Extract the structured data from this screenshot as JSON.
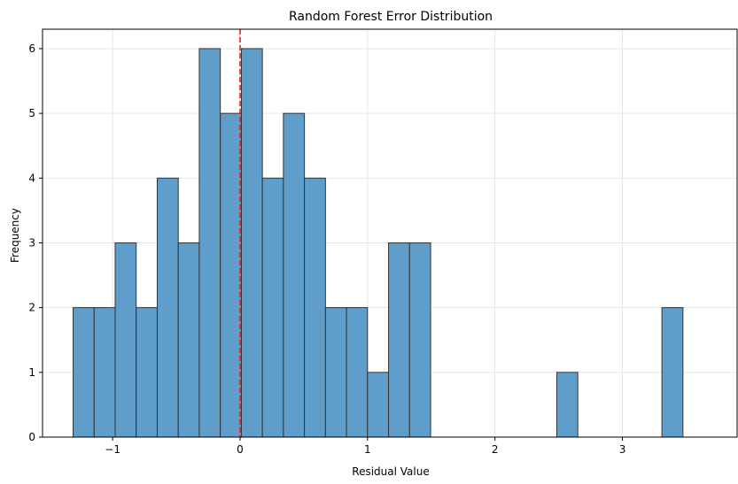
{
  "chart_data": {
    "type": "bar",
    "title": "Random Forest Error Distribution",
    "xlabel": "Residual Value",
    "ylabel": "Frequency",
    "xlim": [
      -1.55,
      3.9
    ],
    "ylim": [
      0,
      6.3
    ],
    "bin_start": -1.31,
    "bin_width": 0.165,
    "bin_counts": [
      2,
      2,
      3,
      2,
      4,
      3,
      6,
      5,
      6,
      4,
      5,
      4,
      2,
      2,
      1,
      3,
      3,
      0,
      0,
      0,
      0,
      0,
      0,
      1,
      0,
      0,
      0,
      0,
      2
    ],
    "x_ticks": [
      {
        "value": -1,
        "label": "−1"
      },
      {
        "value": 0,
        "label": "0"
      },
      {
        "value": 1,
        "label": "1"
      },
      {
        "value": 2,
        "label": "2"
      },
      {
        "value": 3,
        "label": "3"
      }
    ],
    "y_ticks": [
      {
        "value": 0,
        "label": "0"
      },
      {
        "value": 1,
        "label": "1"
      },
      {
        "value": 2,
        "label": "2"
      },
      {
        "value": 3,
        "label": "3"
      },
      {
        "value": 4,
        "label": "4"
      },
      {
        "value": 5,
        "label": "5"
      },
      {
        "value": 6,
        "label": "6"
      }
    ],
    "reference_line": {
      "x": 0,
      "style": "dashed",
      "color": "#d62728"
    },
    "grid": true,
    "bar_color": "#5f9ecb",
    "bar_edge_color": "#333333"
  }
}
